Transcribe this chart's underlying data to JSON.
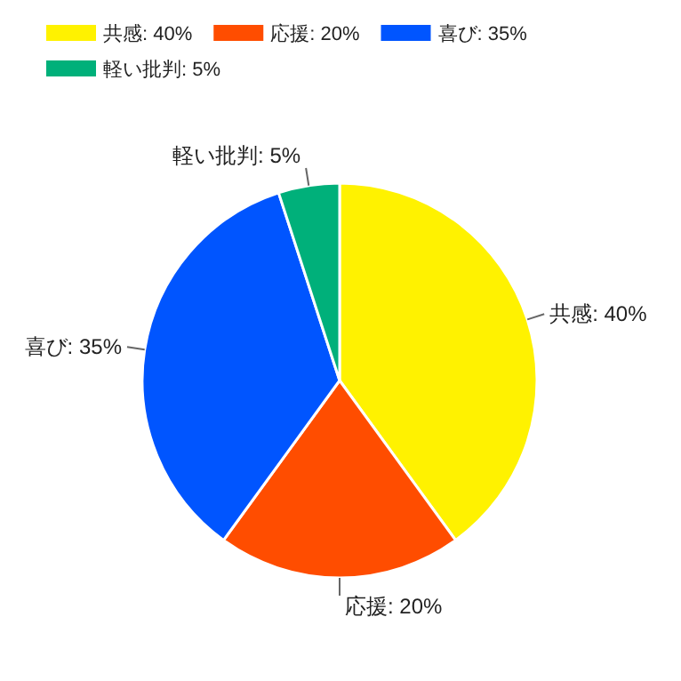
{
  "chart_data": {
    "type": "pie",
    "categories": [
      "共感: 40%",
      "応援: 20%",
      "喜び: 35%",
      "軽い批判: 5%"
    ],
    "values": [
      40,
      20,
      35,
      5
    ],
    "colors": [
      "#fff200",
      "#ff4d00",
      "#0055ff",
      "#00b07a"
    ],
    "legend": "top"
  }
}
